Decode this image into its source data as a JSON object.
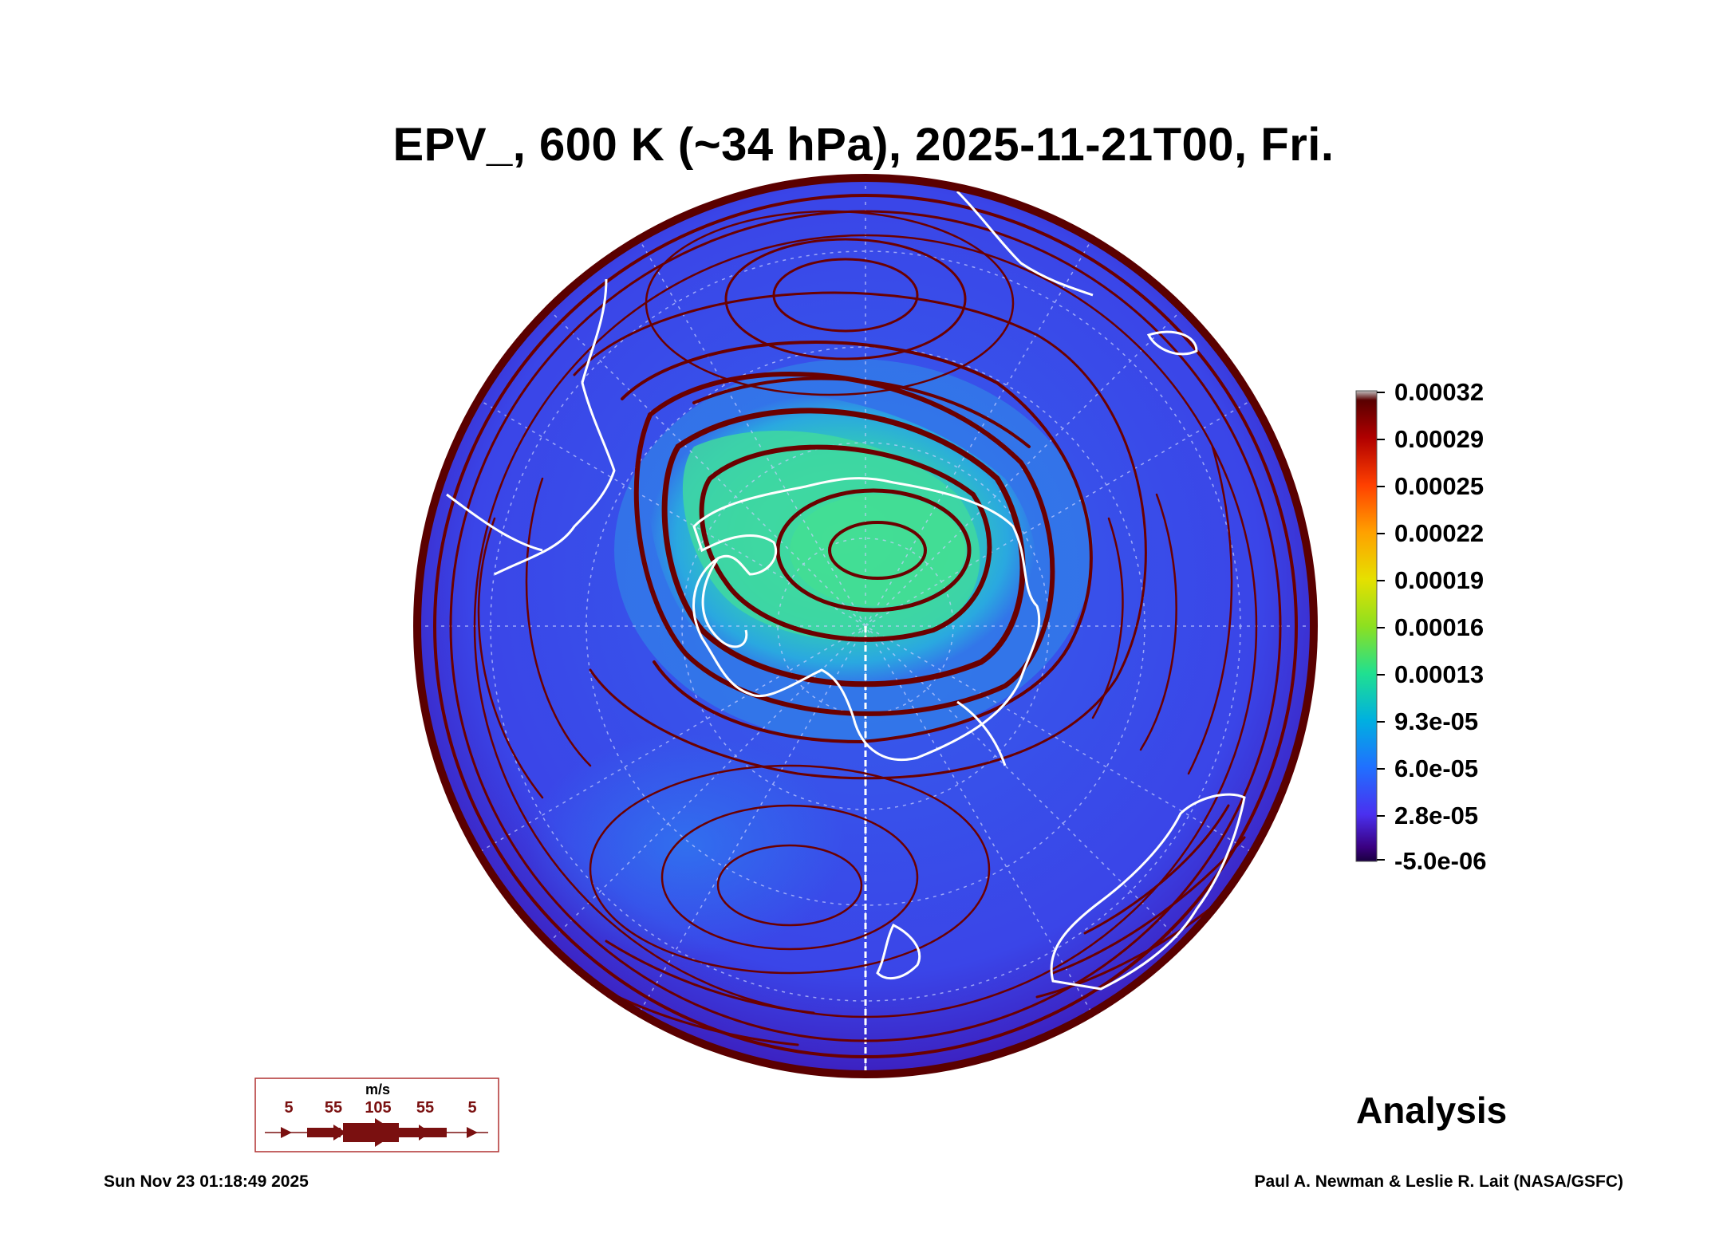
{
  "title": "EPV_, 600 K (~34 hPa), 2025-11-21T00, Fri.",
  "colorbar": {
    "labels": [
      "0.00032",
      "0.00029",
      "0.00025",
      "0.00022",
      "0.00019",
      "0.00016",
      "0.00013",
      "9.3e-05",
      "6.0e-05",
      "2.8e-05",
      "-5.0e-06"
    ],
    "colors": [
      "#5a0000",
      "#b00000",
      "#ff4000",
      "#ffa000",
      "#e6e000",
      "#8de020",
      "#20e090",
      "#00b0e0",
      "#2070ff",
      "#4a30f0",
      "#3a0080",
      "#1a0040"
    ]
  },
  "map": {
    "ocean_color": "#3b4fe8",
    "vortex_color": "#40d8a0",
    "streamline_color": "#6b0000",
    "coast_color": "#ffffff",
    "rim_color": "#5a0000"
  },
  "wind_legend": {
    "unit": "m/s",
    "ticks": [
      "5",
      "55",
      "105",
      "55",
      "5"
    ]
  },
  "analysis_label": "Analysis",
  "timestamp": "Sun Nov 23 01:18:49 2025",
  "credit": "Paul A. Newman & Leslie R. Lait (NASA/GSFC)"
}
